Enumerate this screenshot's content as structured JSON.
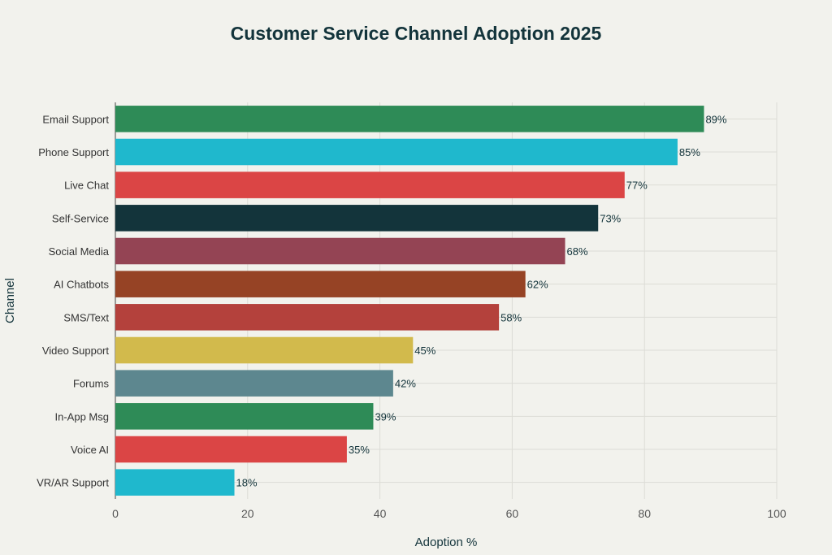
{
  "chart_data": {
    "type": "bar",
    "orientation": "horizontal",
    "title": "Customer Service Channel Adoption 2025",
    "xlabel": "Adoption %",
    "ylabel": "Channel",
    "xlim": [
      0,
      100
    ],
    "xticks": [
      0,
      20,
      40,
      60,
      80,
      100
    ],
    "grid": true,
    "categories": [
      "Email Support",
      "Phone Support",
      "Live Chat",
      "Self-Service",
      "Social Media",
      "AI Chatbots",
      "SMS/Text",
      "Video Support",
      "Forums",
      "In-App Msg",
      "Voice AI",
      "VR/AR Support"
    ],
    "values": [
      89,
      85,
      77,
      73,
      68,
      62,
      58,
      45,
      42,
      39,
      35,
      18
    ],
    "value_labels": [
      "89%",
      "85%",
      "77%",
      "73%",
      "68%",
      "62%",
      "58%",
      "45%",
      "42%",
      "39%",
      "35%",
      "18%"
    ],
    "colors": [
      "#2e8b57",
      "#1fb8cd",
      "#db4545",
      "#13343b",
      "#944454",
      "#964325",
      "#b4413c",
      "#d2ba4c",
      "#5d878f",
      "#2e8b57",
      "#db4545",
      "#1fb8cd"
    ]
  }
}
